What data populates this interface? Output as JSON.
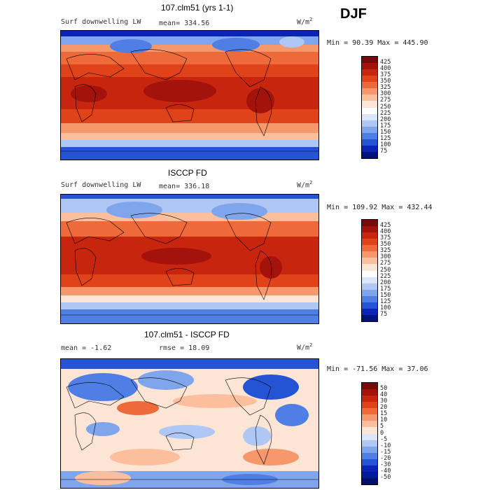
{
  "season": "DJF",
  "units_main": "W/m",
  "units_sup": "2",
  "panels": [
    {
      "title": "107.clm51 (yrs 1-1)",
      "left_label": "Surf downwelling LW",
      "stat_label": "mean= 334.56",
      "minmax": "Min =  90.39 Max = 445.90",
      "scale": [
        "425",
        "400",
        "375",
        "350",
        "325",
        "300",
        "275",
        "250",
        "225",
        "200",
        "175",
        "150",
        "125",
        "100",
        "75"
      ],
      "palette": "abs"
    },
    {
      "title": "ISCCP FD",
      "left_label": "Surf downwelling LW",
      "stat_label": "mean= 336.18",
      "minmax": "Min = 109.92 Max = 432.44",
      "scale": [
        "425",
        "400",
        "375",
        "350",
        "325",
        "300",
        "275",
        "250",
        "225",
        "200",
        "175",
        "150",
        "125",
        "100",
        "75"
      ],
      "palette": "abs"
    },
    {
      "title": "107.clm51 - ISCCP FD",
      "left_label": "mean =  -1.62",
      "stat_label": "rmse =  18.09",
      "minmax": "Min = -71.56 Max =  37.06",
      "scale": [
        "50",
        "40",
        "30",
        "20",
        "15",
        "10",
        "5",
        "0",
        "-5",
        "-10",
        "-15",
        "-20",
        "-30",
        "-40",
        "-50"
      ],
      "palette": "diff"
    }
  ],
  "colors": {
    "abs": [
      "#7a0a0a",
      "#a3130c",
      "#c7250e",
      "#e0431a",
      "#ef6a3a",
      "#f7976c",
      "#fbbf9e",
      "#fde5d6",
      "#ffffff",
      "#dbe6fb",
      "#aec7f4",
      "#7fa5ec",
      "#4f7fe4",
      "#2453d4",
      "#0b24b8",
      "#00137a"
    ],
    "diff": [
      "#7a0a0a",
      "#a3130c",
      "#c7250e",
      "#e0431a",
      "#ef6a3a",
      "#f7976c",
      "#fbbf9e",
      "#fde5d6",
      "#dbe6fb",
      "#aec7f4",
      "#7fa5ec",
      "#4f7fe4",
      "#2453d4",
      "#0b24b8",
      "#001a9a",
      "#00106a"
    ]
  }
}
